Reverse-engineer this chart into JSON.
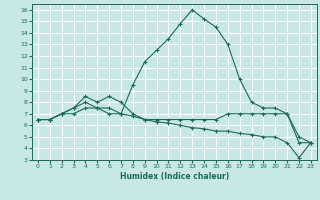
{
  "title": "",
  "xlabel": "Humidex (Indice chaleur)",
  "bg_color": "#c8e8e8",
  "grid_color": "#ffffff",
  "line_color": "#1a6b5a",
  "xlim": [
    -0.5,
    23.5
  ],
  "ylim": [
    3,
    16.5
  ],
  "xticks": [
    0,
    1,
    2,
    3,
    4,
    5,
    6,
    7,
    8,
    9,
    10,
    11,
    12,
    13,
    14,
    15,
    16,
    17,
    18,
    19,
    20,
    21,
    22,
    23
  ],
  "yticks": [
    3,
    4,
    5,
    6,
    7,
    8,
    9,
    10,
    11,
    12,
    13,
    14,
    15,
    16
  ],
  "series": [
    {
      "x": [
        0,
        1,
        2,
        3,
        4,
        5,
        6,
        7,
        8,
        9,
        10,
        11,
        12,
        13,
        14,
        15,
        16,
        17,
        18,
        19,
        20,
        21,
        22,
        23
      ],
      "y": [
        6.5,
        6.5,
        7.0,
        7.5,
        8.0,
        7.5,
        7.5,
        7.0,
        9.5,
        11.5,
        12.5,
        13.5,
        14.8,
        16.0,
        15.2,
        14.5,
        13.0,
        10.0,
        8.0,
        7.5,
        7.5,
        7.0,
        4.5,
        4.5
      ]
    },
    {
      "x": [
        0,
        1,
        2,
        3,
        4,
        5,
        6,
        7,
        8,
        9,
        10,
        11,
        12,
        13,
        14,
        15,
        16,
        17,
        18,
        19,
        20,
        21,
        22,
        23
      ],
      "y": [
        6.5,
        6.5,
        7.0,
        7.5,
        8.5,
        8.0,
        8.5,
        8.0,
        7.0,
        6.5,
        6.5,
        6.5,
        6.5,
        6.5,
        6.5,
        6.5,
        7.0,
        7.0,
        7.0,
        7.0,
        7.0,
        7.0,
        5.0,
        4.5
      ]
    },
    {
      "x": [
        0,
        1,
        2,
        3,
        4,
        5,
        6,
        7,
        8,
        9,
        10,
        11,
        12,
        13,
        14,
        15,
        16,
        17,
        18,
        19,
        20,
        21,
        22,
        23
      ],
      "y": [
        6.5,
        6.5,
        7.0,
        7.0,
        7.5,
        7.5,
        7.0,
        7.0,
        6.8,
        6.5,
        6.3,
        6.2,
        6.0,
        5.8,
        5.7,
        5.5,
        5.5,
        5.3,
        5.2,
        5.0,
        5.0,
        4.5,
        3.2,
        4.5
      ]
    }
  ]
}
